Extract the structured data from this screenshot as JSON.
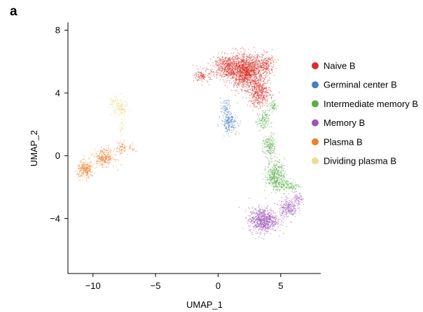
{
  "panel_label": "a",
  "chart_data": {
    "type": "scatter",
    "title": "",
    "xlabel": "UMAP_1",
    "ylabel": "UMAP_2",
    "xlim": [
      -12,
      8.2
    ],
    "ylim": [
      -7.5,
      8.5
    ],
    "xticks": [
      -10,
      -5,
      0,
      5
    ],
    "xtick_labels": [
      "−10",
      "−5",
      "0",
      "5"
    ],
    "yticks": [
      8,
      4,
      0,
      -4
    ],
    "ytick_labels": [
      "8",
      "4",
      "0",
      "−4"
    ],
    "grid": false,
    "legend_position": "right",
    "series": [
      {
        "name": "Naive B",
        "color": "#d73027",
        "clusters": [
          {
            "center": [
              2.2,
              5.4
            ],
            "spread": [
              1.15,
              0.85
            ],
            "n": 1300
          },
          {
            "center": [
              3.3,
              4.0
            ],
            "spread": [
              0.75,
              0.75
            ],
            "n": 420
          },
          {
            "center": [
              0.6,
              5.7
            ],
            "spread": [
              0.85,
              0.6
            ],
            "n": 380
          },
          {
            "center": [
              -1.2,
              5.1
            ],
            "spread": [
              0.55,
              0.35
            ],
            "n": 110
          },
          {
            "center": [
              3.8,
              5.8
            ],
            "spread": [
              0.6,
              0.6
            ],
            "n": 180
          }
        ]
      },
      {
        "name": "Germinal center B",
        "color": "#4a7fbf",
        "clusters": [
          {
            "center": [
              0.9,
              2.1
            ],
            "spread": [
              0.55,
              0.5
            ],
            "n": 180
          },
          {
            "center": [
              0.6,
              3.0
            ],
            "spread": [
              0.35,
              0.5
            ],
            "n": 70
          }
        ]
      },
      {
        "name": "Intermediate memory B",
        "color": "#5aad4a",
        "clusters": [
          {
            "center": [
              4.6,
              -1.2
            ],
            "spread": [
              0.6,
              0.75
            ],
            "n": 380
          },
          {
            "center": [
              4.1,
              0.6
            ],
            "spread": [
              0.45,
              0.6
            ],
            "n": 170
          },
          {
            "center": [
              3.6,
              2.2
            ],
            "spread": [
              0.4,
              0.55
            ],
            "n": 120
          },
          {
            "center": [
              4.4,
              3.2
            ],
            "spread": [
              0.3,
              0.35
            ],
            "n": 50
          },
          {
            "center": [
              5.5,
              -1.9
            ],
            "spread": [
              0.9,
              0.35
            ],
            "n": 150
          }
        ]
      },
      {
        "name": "Memory B",
        "color": "#9c55b8",
        "clusters": [
          {
            "center": [
              3.6,
              -4.1
            ],
            "spread": [
              0.95,
              0.65
            ],
            "n": 700
          },
          {
            "center": [
              5.6,
              -3.3
            ],
            "spread": [
              0.6,
              0.5
            ],
            "n": 220
          },
          {
            "center": [
              6.4,
              -2.8
            ],
            "spread": [
              0.3,
              0.35
            ],
            "n": 60
          }
        ]
      },
      {
        "name": "Plasma B",
        "color": "#ef7f2e",
        "clusters": [
          {
            "center": [
              -10.6,
              -0.9
            ],
            "spread": [
              0.55,
              0.45
            ],
            "n": 230
          },
          {
            "center": [
              -9.1,
              -0.1
            ],
            "spread": [
              0.7,
              0.45
            ],
            "n": 260
          },
          {
            "center": [
              -7.7,
              0.5
            ],
            "spread": [
              0.35,
              0.35
            ],
            "n": 60
          },
          {
            "center": [
              -6.9,
              0.5
            ],
            "spread": [
              0.25,
              0.25
            ],
            "n": 20
          }
        ]
      },
      {
        "name": "Dividing plasma B",
        "color": "#ecdc95",
        "clusters": [
          {
            "center": [
              -7.8,
              3.0
            ],
            "spread": [
              0.45,
              0.6
            ],
            "n": 160
          },
          {
            "center": [
              -8.4,
              3.4
            ],
            "spread": [
              0.3,
              0.3
            ],
            "n": 40
          },
          {
            "center": [
              -7.7,
              1.7
            ],
            "spread": [
              0.15,
              0.4
            ],
            "n": 30
          }
        ]
      }
    ]
  }
}
